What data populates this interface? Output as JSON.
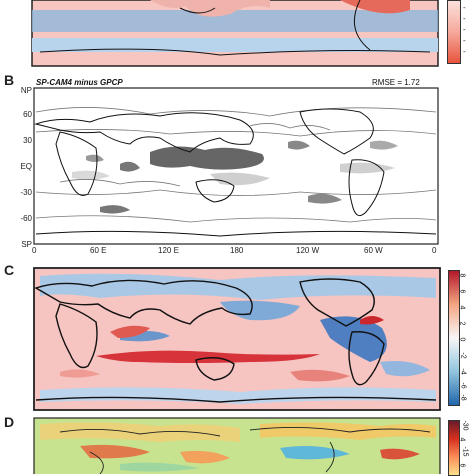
{
  "panels": {
    "b": {
      "letter": "B",
      "title": "SP-CAM4 minus GPCP",
      "rmse": "RMSE = 1.72",
      "lat_labels": [
        "NP",
        "60",
        "30",
        "EQ",
        "-30",
        "-60",
        "SP"
      ],
      "lon_labels": [
        "0",
        "60 E",
        "120 E",
        "180",
        "120 W",
        "60 W",
        "0"
      ]
    },
    "c": {
      "letter": "C",
      "colorbar_labels": [
        "8",
        "6",
        "4",
        "2",
        "0",
        "-2",
        "-4",
        "-6",
        "-8"
      ]
    },
    "d": {
      "letter": "D",
      "colorbar_labels": [
        "-30",
        "4",
        "-15",
        "6"
      ]
    },
    "a": {
      "colorbar_labels": [
        "-",
        "-",
        "-",
        "-",
        "-"
      ]
    }
  },
  "colors": {
    "wet": "#b2182b",
    "dry": "#2166ac",
    "light_wet": "#f4a6a0",
    "light_dry": "#9ecae1",
    "contour_dark": "#555555",
    "contour_light": "#aaaaaa"
  }
}
